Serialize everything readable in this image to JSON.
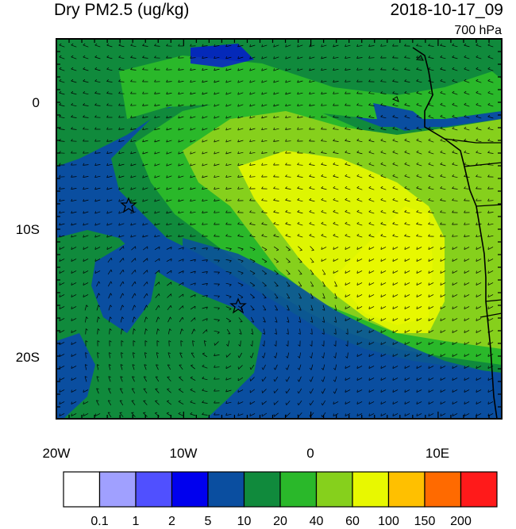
{
  "header": {
    "title": "Dry PM2.5 (ug/kg)",
    "datetime": "2018-10-17_09",
    "level": "700 hPa"
  },
  "map": {
    "lat_ticks": [
      "0",
      "10S",
      "20S"
    ],
    "lon_ticks": [
      "20W",
      "10W",
      "0",
      "10E"
    ],
    "markers": [
      "star",
      "star"
    ],
    "coast_color": "#000000",
    "wind_barb_color": "#000000"
  },
  "colorbar": {
    "labels": [
      "0.1",
      "1",
      "2",
      "5",
      "10",
      "20",
      "40",
      "60",
      "100",
      "150",
      "200"
    ],
    "colors": [
      "#ffffff",
      "#a0a0ff",
      "#5050ff",
      "#0000ee",
      "#0a4ea0",
      "#108a3c",
      "#2ab82a",
      "#86d01c",
      "#e8f800",
      "#ffc000",
      "#ff6a00",
      "#ff1a1a"
    ]
  }
}
